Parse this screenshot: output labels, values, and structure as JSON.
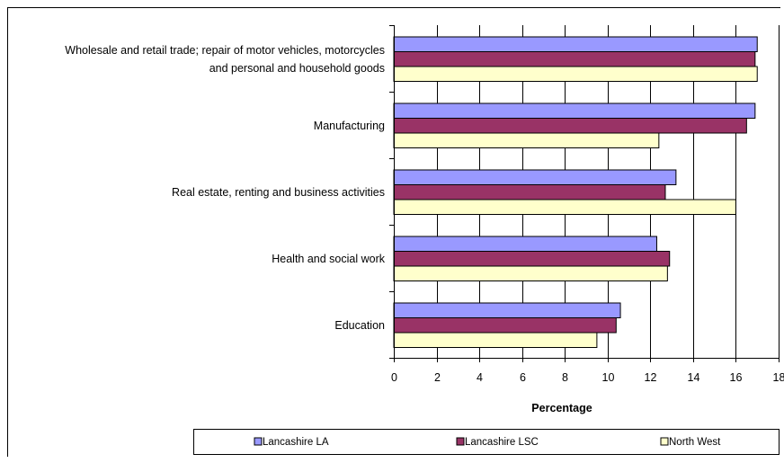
{
  "chart_data": {
    "type": "bar",
    "orientation": "horizontal",
    "categories": [
      [
        "Wholesale and retail trade; repair of motor vehicles, motorcycles",
        "and personal and household goods"
      ],
      [
        "Manufacturing"
      ],
      [
        "Real estate, renting and business activities"
      ],
      [
        "Health and social work"
      ],
      [
        "Education"
      ]
    ],
    "series": [
      {
        "name": "Lancashire LA",
        "color": "#9999ff",
        "values": [
          17.0,
          16.9,
          13.2,
          12.3,
          10.6
        ]
      },
      {
        "name": "Lancashire LSC",
        "color": "#993366",
        "values": [
          16.9,
          16.5,
          12.7,
          12.9,
          10.4
        ]
      },
      {
        "name": "North West",
        "color": "#ffffcc",
        "values": [
          17.0,
          12.4,
          16.0,
          12.8,
          9.5
        ]
      }
    ],
    "xlabel": "Percentage",
    "xlim": [
      0,
      18
    ],
    "xticks": [
      0,
      2,
      4,
      6,
      8,
      10,
      12,
      14,
      16,
      18
    ],
    "grid": "vertical",
    "legend_position": "bottom"
  }
}
